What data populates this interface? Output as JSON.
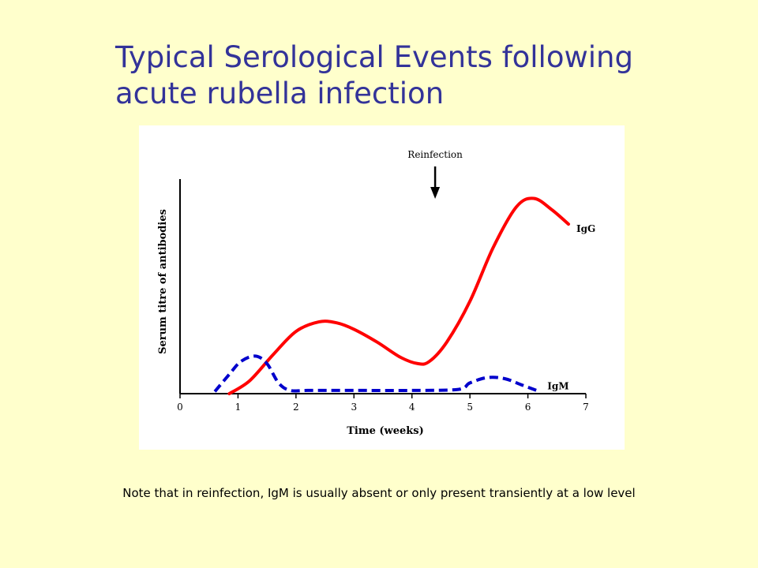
{
  "slide": {
    "title_line1": "Typical Serological Events following",
    "title_line2": "acute rubella infection",
    "note": "Note that in reinfection, IgM is usually absent or only present transiently at a low level"
  },
  "colors": {
    "background": "#FFFFCC",
    "title": "#333399",
    "igg": "#FF0000",
    "igm": "#0000CC"
  },
  "chart_data": {
    "type": "line",
    "title": "",
    "xlabel": "Time (weeks)",
    "ylabel": "Serum titre of antibodies",
    "xlim": [
      0,
      7
    ],
    "ylim": [
      0,
      100
    ],
    "x_ticks": [
      "0",
      "1",
      "2",
      "3",
      "4",
      "5",
      "6",
      "7"
    ],
    "y_tick_labels": false,
    "grid": false,
    "annotation": {
      "text": "Reinfection",
      "x": 4.4,
      "arrow": "down"
    },
    "series": [
      {
        "name": "IgG",
        "style": "solid",
        "color": "#FF0000",
        "label_position": "end",
        "points": [
          [
            0.85,
            0.0
          ],
          [
            1.2,
            6
          ],
          [
            1.6,
            18
          ],
          [
            2.0,
            29
          ],
          [
            2.4,
            33.5
          ],
          [
            2.7,
            33
          ],
          [
            3.0,
            30
          ],
          [
            3.4,
            24
          ],
          [
            3.8,
            17
          ],
          [
            4.1,
            14
          ],
          [
            4.3,
            15
          ],
          [
            4.6,
            24
          ],
          [
            5.0,
            43
          ],
          [
            5.4,
            68
          ],
          [
            5.8,
            87
          ],
          [
            6.1,
            91
          ],
          [
            6.4,
            86
          ],
          [
            6.7,
            79
          ]
        ]
      },
      {
        "name": "IgM",
        "style": "dashed",
        "color": "#0000CC",
        "label_position": "end",
        "points": [
          [
            0.6,
            1
          ],
          [
            0.85,
            9
          ],
          [
            1.05,
            15
          ],
          [
            1.3,
            17.5
          ],
          [
            1.5,
            14
          ],
          [
            1.7,
            5
          ],
          [
            1.9,
            1.5
          ],
          [
            2.2,
            1.5
          ],
          [
            3.0,
            1.5
          ],
          [
            4.0,
            1.5
          ],
          [
            4.8,
            2
          ],
          [
            5.0,
            5
          ],
          [
            5.3,
            7.5
          ],
          [
            5.6,
            7
          ],
          [
            5.9,
            4
          ],
          [
            6.2,
            1
          ]
        ]
      }
    ]
  }
}
